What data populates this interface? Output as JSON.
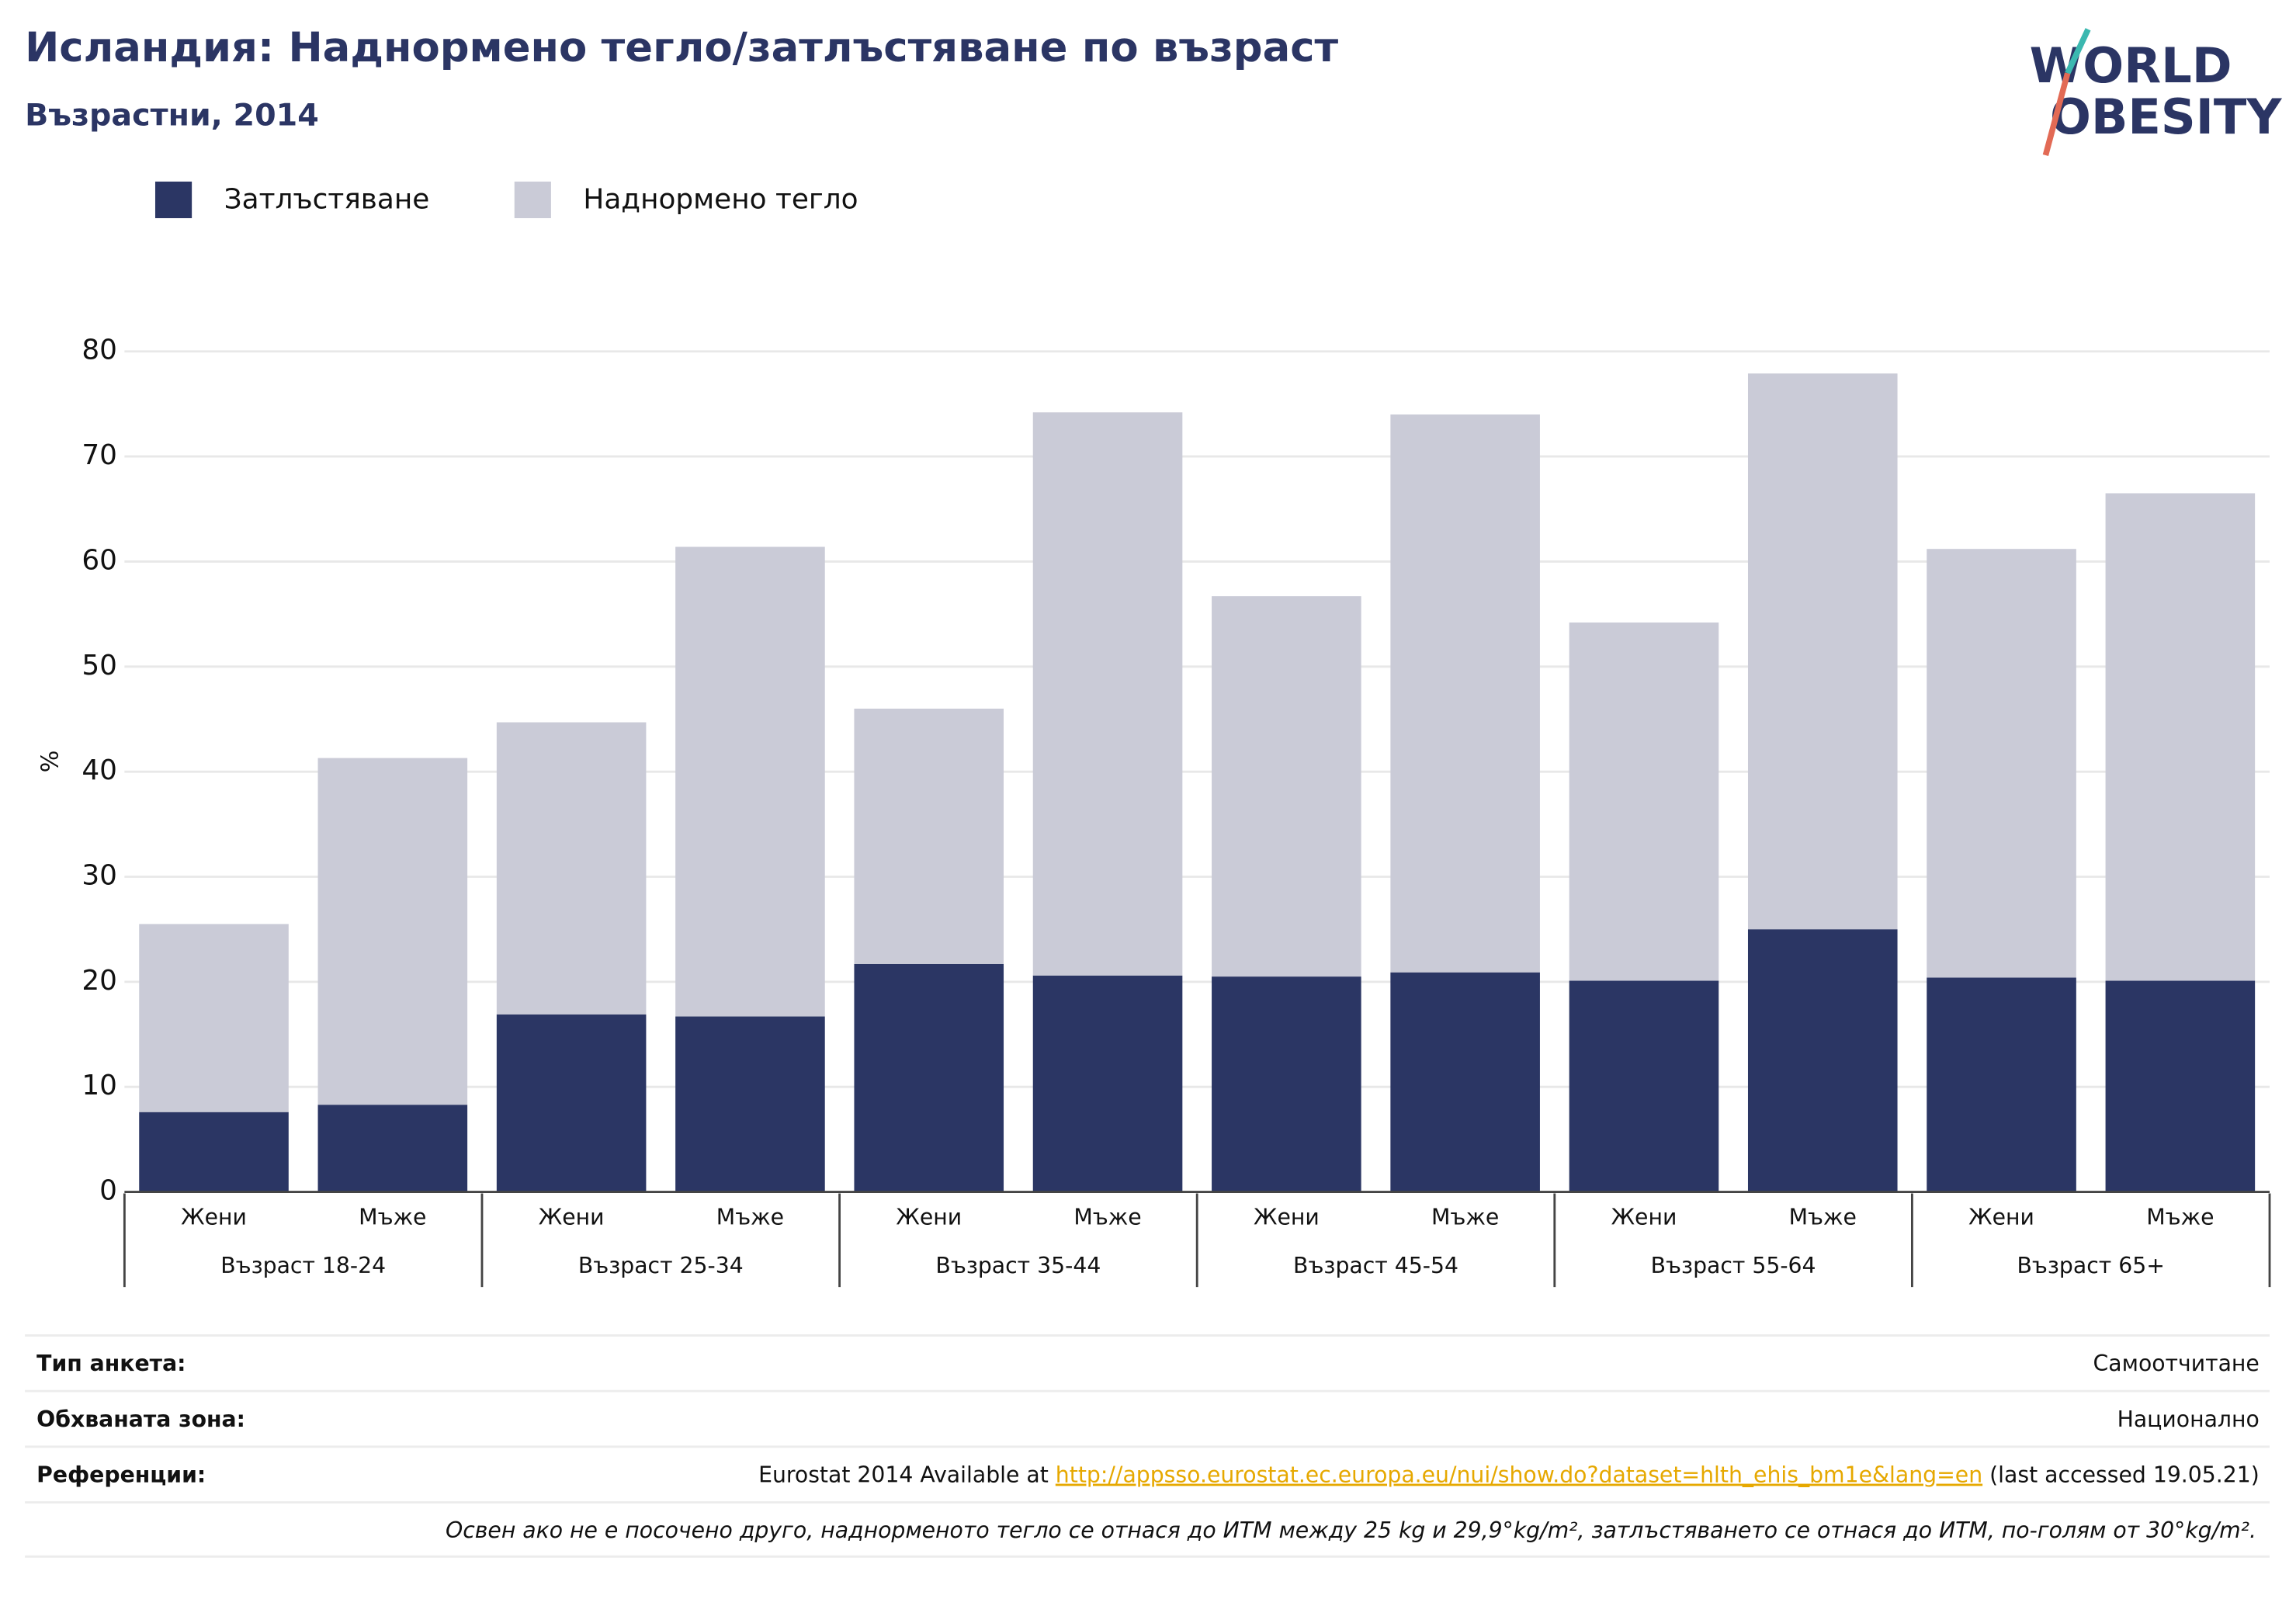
{
  "chart_data": {
    "type": "stacked_bar",
    "title": "Исландия: Наднормено тегло/затлъстяване по възраст",
    "subtitle": "Възрастни, 2014",
    "y_label": "%",
    "categories": [
      "Жени",
      "Мъже",
      "Жени",
      "Мъже",
      "Жени",
      "Мъже",
      "Жени",
      "Мъже",
      "Жени",
      "Мъже",
      "Жени",
      "Мъже"
    ],
    "groups": [
      "Възраст 18-24",
      "Възраст 25-34",
      "Възраст 35-44",
      "Възраст 45-54",
      "Възраст 55-64",
      "Възраст 65+"
    ],
    "series": [
      {
        "name": "Затлъстяване",
        "color": "#2b3664",
        "values": [
          7.6,
          8.3,
          16.9,
          16.7,
          21.7,
          20.6,
          20.5,
          20.9,
          20.1,
          25.0,
          20.4,
          20.1
        ]
      },
      {
        "name": "Наднормено тегло",
        "color": "#cacbd7",
        "values": [
          17.9,
          33.0,
          27.8,
          44.7,
          24.3,
          53.6,
          36.2,
          53.1,
          34.1,
          52.9,
          40.8,
          46.4
        ]
      }
    ],
    "ylim": [
      0,
      80
    ],
    "yticks": [
      0,
      10,
      20,
      30,
      40,
      50,
      60,
      70,
      80
    ],
    "grid": true
  },
  "logo": {
    "line1": "WORLD",
    "line2": "OBESITY"
  },
  "footer": {
    "rows": [
      {
        "label": "Тип анкета:",
        "value": "Самоотчитане"
      },
      {
        "label": "Обхваната зона:",
        "value": "Национално"
      }
    ],
    "reference": {
      "label": "Референции:",
      "text_before": "Eurostat 2014 Available at",
      "link": "http://appsso.eurostat.ec.europa.eu/nui/show.do?dataset=hlth_ehis_bm1e&lang=en",
      "text_after": "(last accessed 19.05.21)"
    },
    "note": "Освен ако не е посочено друго, наднорменото тегло се отнася до ИТМ между 25 kg и 29,9°kg/m², затлъстяването се отнася до ИТМ, по-голям от 30°kg/m²."
  }
}
